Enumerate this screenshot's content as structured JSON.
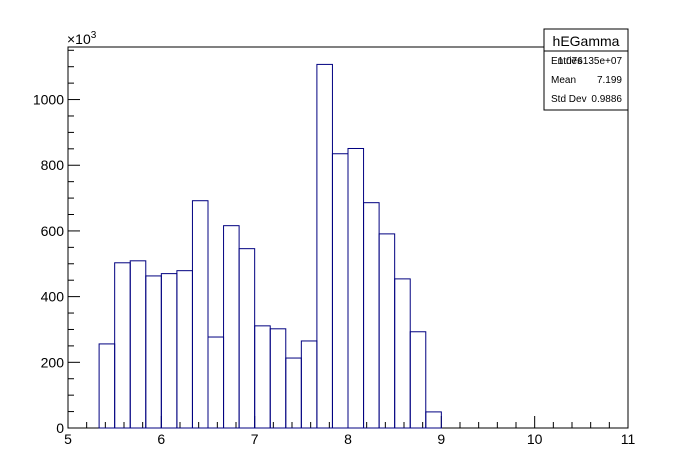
{
  "chart_data": {
    "type": "histogram",
    "bins": [
      5.3333,
      5.5,
      5.6667,
      5.8333,
      6.0,
      6.1667,
      6.3333,
      6.5,
      6.6667,
      6.8333,
      7.0,
      7.1667,
      7.3333,
      7.5,
      7.6667,
      7.8333,
      8.0,
      8.1667,
      8.3333,
      8.5,
      8.6667,
      8.8333,
      9.0
    ],
    "counts": [
      256,
      503,
      509,
      463,
      470,
      479,
      692,
      277,
      616,
      546,
      311,
      302,
      213,
      265,
      1107,
      835,
      851,
      686,
      591,
      454,
      293,
      49
    ],
    "color": "#000080",
    "xlim": [
      5,
      11
    ],
    "xticks": [
      5,
      6,
      7,
      8,
      9,
      10,
      11
    ],
    "ylim": [
      0,
      1160
    ],
    "yticks": [
      0,
      200,
      400,
      600,
      800,
      1000
    ],
    "y_multiplier": {
      "base": "×10",
      "exponent": "3"
    },
    "stats": {
      "title": "hEGamma",
      "rows": [
        {
          "label": "Entries",
          "value": "1.076135e+07"
        },
        {
          "label": "Mean",
          "value": "7.199"
        },
        {
          "label": "Std Dev",
          "value": "0.9886"
        }
      ]
    }
  }
}
